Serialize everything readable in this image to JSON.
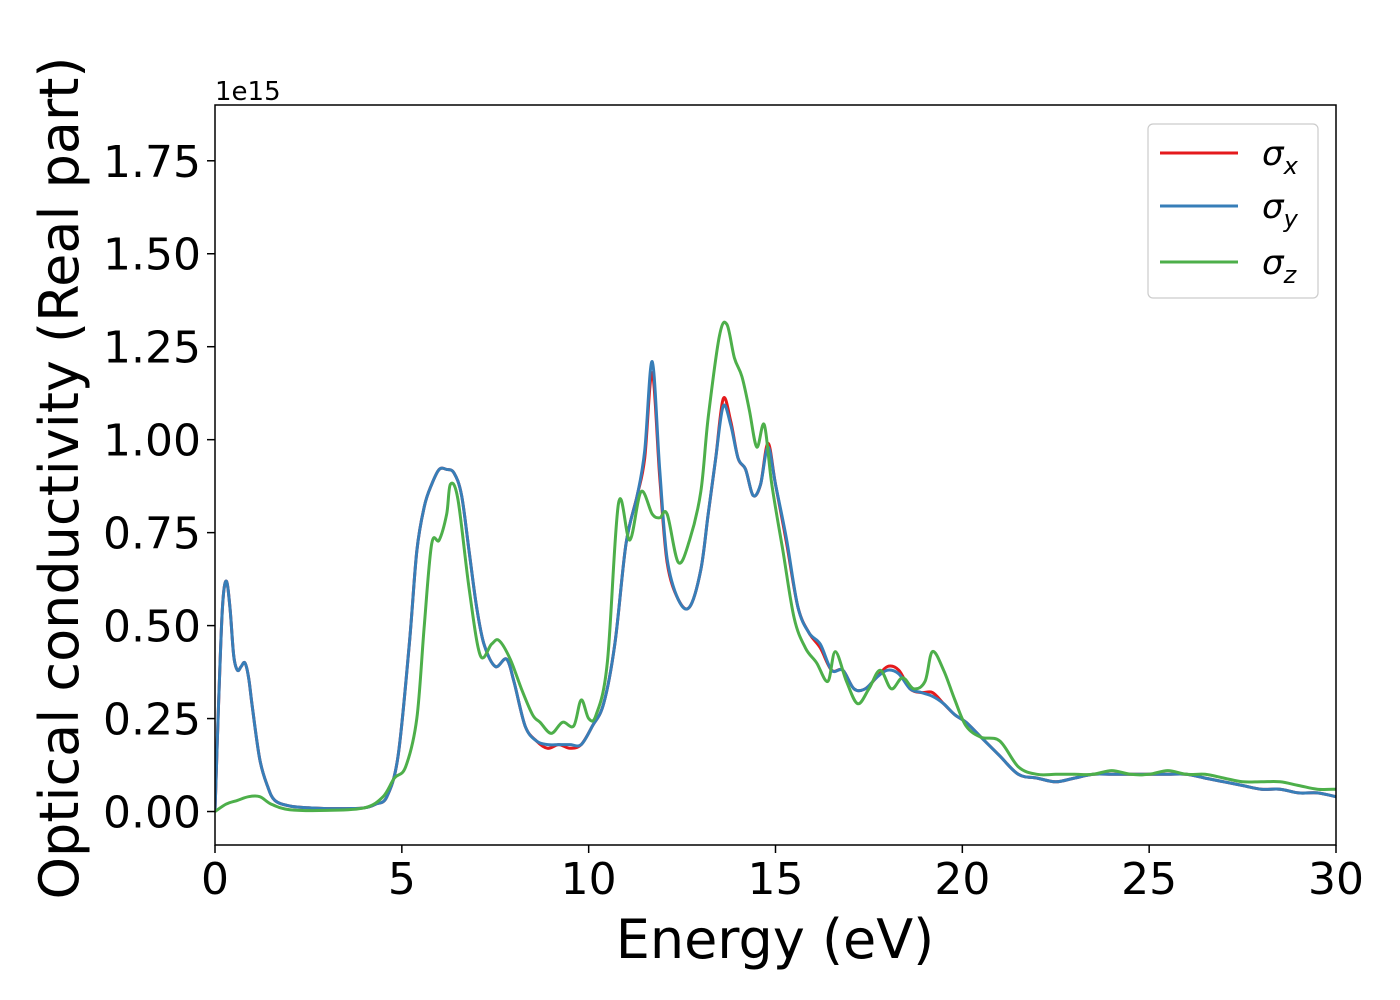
{
  "chart_data": {
    "type": "line",
    "title": "",
    "xlabel": "Energy (eV)",
    "ylabel": "Optical conductivity (Real part)",
    "y_offset_label": "1e15",
    "xlim": [
      0,
      30
    ],
    "ylim": [
      -0.09,
      1.9
    ],
    "x_ticks": [
      0,
      5,
      10,
      15,
      20,
      25,
      30
    ],
    "x_tick_labels": [
      "0",
      "5",
      "10",
      "15",
      "20",
      "25",
      "30"
    ],
    "y_ticks": [
      0.0,
      0.25,
      0.5,
      0.75,
      1.0,
      1.25,
      1.5,
      1.75
    ],
    "y_tick_labels": [
      "0.00",
      "0.25",
      "0.50",
      "0.75",
      "1.00",
      "1.25",
      "1.50",
      "1.75"
    ],
    "grid": false,
    "legend_position": "top-right",
    "series": [
      {
        "name": "σ",
        "subscript": "x",
        "color": "#e41a1c",
        "x": [
          0,
          0.1,
          0.2,
          0.3,
          0.4,
          0.5,
          0.6,
          0.7,
          0.8,
          0.9,
          1.0,
          1.2,
          1.4,
          1.6,
          2.0,
          2.5,
          3.0,
          3.5,
          4.0,
          4.3,
          4.6,
          4.9,
          5.2,
          5.4,
          5.6,
          5.8,
          6.0,
          6.2,
          6.4,
          6.6,
          6.8,
          7.0,
          7.2,
          7.5,
          7.8,
          8.0,
          8.3,
          8.6,
          8.9,
          9.2,
          9.5,
          9.8,
          10.1,
          10.4,
          10.7,
          11.0,
          11.3,
          11.5,
          11.7,
          11.9,
          12.1,
          12.4,
          12.7,
          13.0,
          13.2,
          13.4,
          13.6,
          13.8,
          14.0,
          14.2,
          14.4,
          14.6,
          14.8,
          15.0,
          15.3,
          15.6,
          15.9,
          16.2,
          16.5,
          16.8,
          17.1,
          17.4,
          17.7,
          18.0,
          18.3,
          18.6,
          18.9,
          19.2,
          19.5,
          19.8,
          20.1,
          20.5,
          21.0,
          21.5,
          22.0,
          22.5,
          23.0,
          23.5,
          24.0,
          24.5,
          25.0,
          25.5,
          26.0,
          26.5,
          27.0,
          27.5,
          28.0,
          28.5,
          29.0,
          29.5,
          30.0
        ],
        "y": [
          0.0,
          0.3,
          0.55,
          0.62,
          0.55,
          0.42,
          0.38,
          0.39,
          0.4,
          0.36,
          0.28,
          0.14,
          0.07,
          0.03,
          0.015,
          0.01,
          0.008,
          0.008,
          0.01,
          0.02,
          0.04,
          0.15,
          0.45,
          0.7,
          0.82,
          0.88,
          0.92,
          0.92,
          0.91,
          0.85,
          0.7,
          0.55,
          0.45,
          0.39,
          0.41,
          0.35,
          0.23,
          0.19,
          0.17,
          0.18,
          0.17,
          0.18,
          0.23,
          0.29,
          0.45,
          0.72,
          0.85,
          0.95,
          1.18,
          0.9,
          0.67,
          0.57,
          0.55,
          0.65,
          0.8,
          0.95,
          1.11,
          1.05,
          0.95,
          0.92,
          0.85,
          0.88,
          0.99,
          0.88,
          0.72,
          0.55,
          0.48,
          0.44,
          0.38,
          0.38,
          0.33,
          0.33,
          0.36,
          0.39,
          0.38,
          0.33,
          0.32,
          0.32,
          0.29,
          0.26,
          0.24,
          0.2,
          0.15,
          0.1,
          0.09,
          0.08,
          0.09,
          0.1,
          0.1,
          0.1,
          0.1,
          0.1,
          0.1,
          0.09,
          0.08,
          0.07,
          0.06,
          0.06,
          0.05,
          0.05,
          0.04
        ]
      },
      {
        "name": "σ",
        "subscript": "y",
        "color": "#377eb8",
        "x": [
          0,
          0.1,
          0.2,
          0.3,
          0.4,
          0.5,
          0.6,
          0.7,
          0.8,
          0.9,
          1.0,
          1.2,
          1.4,
          1.6,
          2.0,
          2.5,
          3.0,
          3.5,
          4.0,
          4.3,
          4.6,
          4.9,
          5.2,
          5.4,
          5.6,
          5.8,
          6.0,
          6.2,
          6.4,
          6.6,
          6.8,
          7.0,
          7.2,
          7.5,
          7.8,
          8.0,
          8.3,
          8.6,
          8.9,
          9.2,
          9.5,
          9.8,
          10.1,
          10.4,
          10.7,
          11.0,
          11.3,
          11.5,
          11.7,
          11.9,
          12.1,
          12.4,
          12.7,
          13.0,
          13.2,
          13.4,
          13.6,
          13.8,
          14.0,
          14.2,
          14.4,
          14.6,
          14.8,
          15.0,
          15.3,
          15.6,
          15.9,
          16.2,
          16.5,
          16.8,
          17.1,
          17.4,
          17.7,
          18.0,
          18.3,
          18.6,
          18.9,
          19.2,
          19.5,
          19.8,
          20.1,
          20.5,
          21.0,
          21.5,
          22.0,
          22.5,
          23.0,
          23.5,
          24.0,
          24.5,
          25.0,
          25.5,
          26.0,
          26.5,
          27.0,
          27.5,
          28.0,
          28.5,
          29.0,
          29.5,
          30.0
        ],
        "y": [
          0.0,
          0.3,
          0.55,
          0.62,
          0.55,
          0.42,
          0.38,
          0.39,
          0.4,
          0.36,
          0.28,
          0.14,
          0.07,
          0.03,
          0.015,
          0.01,
          0.008,
          0.008,
          0.01,
          0.02,
          0.04,
          0.15,
          0.45,
          0.7,
          0.82,
          0.88,
          0.92,
          0.92,
          0.91,
          0.85,
          0.7,
          0.55,
          0.45,
          0.39,
          0.41,
          0.35,
          0.23,
          0.19,
          0.18,
          0.18,
          0.18,
          0.18,
          0.23,
          0.29,
          0.45,
          0.72,
          0.85,
          0.97,
          1.21,
          0.92,
          0.68,
          0.57,
          0.55,
          0.65,
          0.8,
          0.95,
          1.09,
          1.04,
          0.95,
          0.92,
          0.85,
          0.88,
          0.98,
          0.88,
          0.73,
          0.55,
          0.48,
          0.45,
          0.38,
          0.38,
          0.33,
          0.33,
          0.36,
          0.38,
          0.37,
          0.33,
          0.32,
          0.31,
          0.29,
          0.26,
          0.24,
          0.2,
          0.15,
          0.1,
          0.09,
          0.08,
          0.09,
          0.1,
          0.1,
          0.1,
          0.1,
          0.1,
          0.1,
          0.09,
          0.08,
          0.07,
          0.06,
          0.06,
          0.05,
          0.05,
          0.04
        ]
      },
      {
        "name": "σ",
        "subscript": "z",
        "color": "#4daf4a",
        "x": [
          0,
          0.3,
          0.6,
          0.9,
          1.2,
          1.5,
          2.0,
          3.0,
          4.0,
          4.5,
          4.8,
          5.1,
          5.4,
          5.6,
          5.8,
          6.0,
          6.2,
          6.3,
          6.5,
          6.8,
          7.1,
          7.4,
          7.6,
          7.9,
          8.2,
          8.5,
          8.7,
          9.0,
          9.3,
          9.6,
          9.8,
          10.0,
          10.2,
          10.5,
          10.8,
          11.1,
          11.4,
          11.7,
          11.9,
          12.1,
          12.4,
          12.7,
          13.0,
          13.2,
          13.5,
          13.7,
          13.9,
          14.1,
          14.3,
          14.5,
          14.7,
          14.9,
          15.2,
          15.5,
          15.8,
          16.1,
          16.4,
          16.6,
          16.9,
          17.2,
          17.5,
          17.8,
          18.1,
          18.4,
          18.7,
          19.0,
          19.2,
          19.5,
          19.8,
          20.1,
          20.5,
          21.0,
          21.5,
          22.0,
          22.5,
          23.0,
          23.5,
          24.0,
          24.5,
          25.0,
          25.5,
          26.0,
          26.5,
          27.0,
          27.5,
          28.0,
          28.5,
          29.0,
          29.5,
          30.0
        ],
        "y": [
          0.0,
          0.02,
          0.03,
          0.04,
          0.04,
          0.02,
          0.005,
          0.003,
          0.01,
          0.04,
          0.09,
          0.12,
          0.25,
          0.5,
          0.72,
          0.73,
          0.8,
          0.88,
          0.84,
          0.6,
          0.42,
          0.45,
          0.46,
          0.41,
          0.33,
          0.26,
          0.24,
          0.21,
          0.24,
          0.23,
          0.3,
          0.25,
          0.26,
          0.4,
          0.83,
          0.73,
          0.86,
          0.8,
          0.79,
          0.8,
          0.67,
          0.73,
          0.86,
          1.06,
          1.28,
          1.31,
          1.22,
          1.17,
          1.08,
          0.98,
          1.04,
          0.88,
          0.7,
          0.52,
          0.44,
          0.4,
          0.35,
          0.43,
          0.35,
          0.29,
          0.33,
          0.38,
          0.33,
          0.36,
          0.33,
          0.35,
          0.43,
          0.38,
          0.3,
          0.23,
          0.2,
          0.19,
          0.12,
          0.1,
          0.1,
          0.1,
          0.1,
          0.11,
          0.1,
          0.1,
          0.11,
          0.1,
          0.1,
          0.09,
          0.08,
          0.08,
          0.08,
          0.07,
          0.06,
          0.06
        ]
      }
    ]
  }
}
